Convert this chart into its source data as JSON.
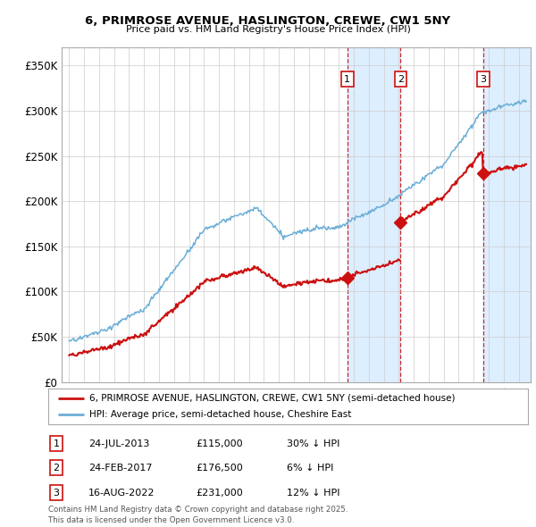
{
  "title": "6, PRIMROSE AVENUE, HASLINGTON, CREWE, CW1 5NY",
  "subtitle": "Price paid vs. HM Land Registry's House Price Index (HPI)",
  "ylim": [
    0,
    370000
  ],
  "yticks": [
    0,
    50000,
    100000,
    150000,
    200000,
    250000,
    300000,
    350000
  ],
  "ytick_labels": [
    "£0",
    "£50K",
    "£100K",
    "£150K",
    "£200K",
    "£250K",
    "£300K",
    "£350K"
  ],
  "sale_times": [
    2013.562,
    2017.123,
    2022.623
  ],
  "sale_prices": [
    115000,
    176500,
    231000
  ],
  "sale_labels": [
    "1",
    "2",
    "3"
  ],
  "sale_pct": [
    "30%",
    "6%",
    "12%"
  ],
  "sale_date_labels": [
    "24-JUL-2013",
    "24-FEB-2017",
    "16-AUG-2022"
  ],
  "sale_price_labels": [
    "£115,000",
    "£176,500",
    "£231,000"
  ],
  "hpi_color": "#6baed6",
  "price_color": "#cc1111",
  "shading_color": "#ddeeff",
  "vline_color": "#cc1111",
  "legend_label_price": "6, PRIMROSE AVENUE, HASLINGTON, CREWE, CW1 5NY (semi-detached house)",
  "legend_label_hpi": "HPI: Average price, semi-detached house, Cheshire East",
  "footer": "Contains HM Land Registry data © Crown copyright and database right 2025.\nThis data is licensed under the Open Government Licence v3.0.",
  "background_color": "#ffffff",
  "plot_bg_color": "#ffffff"
}
